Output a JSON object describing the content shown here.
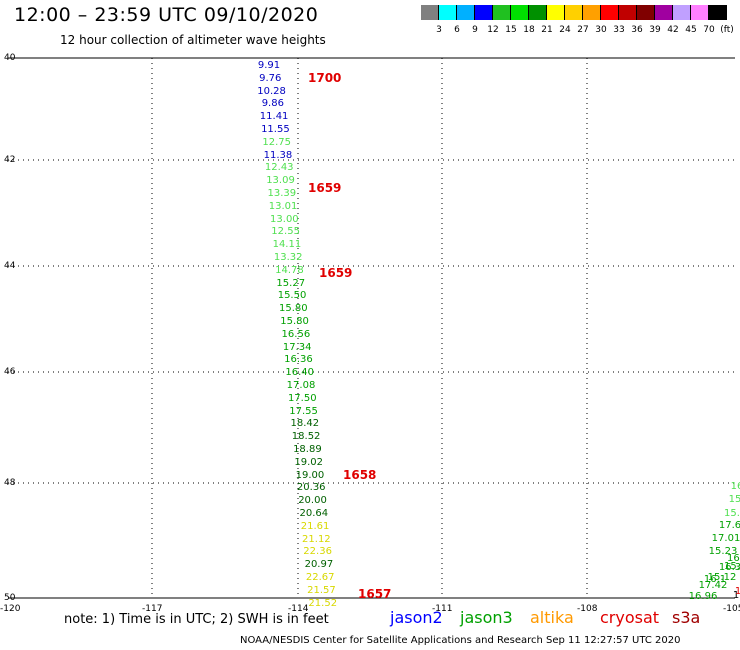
{
  "header": {
    "title": "12:00 – 23:59 UTC 09/10/2020",
    "subtitle": "12 hour collection of altimeter wave heights"
  },
  "legend": {
    "colors": [
      "#808080",
      "#00ffff",
      "#00b0ff",
      "#0000ff",
      "#20c020",
      "#00e000",
      "#009000",
      "#ffff00",
      "#ffd000",
      "#ffa000",
      "#ff0000",
      "#c00000",
      "#800000",
      "#a000a0",
      "#c0a0ff",
      "#ff80ff",
      "#000000"
    ],
    "labels": [
      "3",
      "6",
      "9",
      "12",
      "15",
      "18",
      "21",
      "24",
      "27",
      "30",
      "33",
      "36",
      "39",
      "42",
      "45",
      "70",
      "(ft)"
    ]
  },
  "axes": {
    "x_ticks": [
      "-120",
      "-117",
      "-114",
      "-111",
      "-108",
      "-105"
    ],
    "y_ticks": [
      "40",
      "42",
      "44",
      "46",
      "48",
      "50"
    ]
  },
  "observations_main": [
    {
      "v": "9.91",
      "c": "#0000c0"
    },
    {
      "v": "9.76",
      "c": "#0000c0"
    },
    {
      "v": "10.28",
      "c": "#0000c0"
    },
    {
      "v": "9.86",
      "c": "#0000c0"
    },
    {
      "v": "11.41",
      "c": "#0000c0"
    },
    {
      "v": "11.55",
      "c": "#0000c0"
    },
    {
      "v": "12.75",
      "c": "#50e050"
    },
    {
      "v": "11.38",
      "c": "#0000c0"
    },
    {
      "v": "12.43",
      "c": "#50e050"
    },
    {
      "v": "13.09",
      "c": "#50e050"
    },
    {
      "v": "13.39",
      "c": "#50e050"
    },
    {
      "v": "13.01",
      "c": "#50e050"
    },
    {
      "v": "13.00",
      "c": "#50e050"
    },
    {
      "v": "12.55",
      "c": "#50e050"
    },
    {
      "v": "14.11",
      "c": "#50e050"
    },
    {
      "v": "13.32",
      "c": "#50e050"
    },
    {
      "v": "14.78",
      "c": "#50e050"
    },
    {
      "v": "15.27",
      "c": "#00a000"
    },
    {
      "v": "15.50",
      "c": "#00a000"
    },
    {
      "v": "15.80",
      "c": "#00a000"
    },
    {
      "v": "15.80",
      "c": "#00a000"
    },
    {
      "v": "16.56",
      "c": "#00a000"
    },
    {
      "v": "17.34",
      "c": "#00a000"
    },
    {
      "v": "16.36",
      "c": "#00a000"
    },
    {
      "v": "16.40",
      "c": "#00a000"
    },
    {
      "v": "17.08",
      "c": "#00a000"
    },
    {
      "v": "17.50",
      "c": "#00a000"
    },
    {
      "v": "17.55",
      "c": "#00a000"
    },
    {
      "v": "18.42",
      "c": "#006000"
    },
    {
      "v": "18.52",
      "c": "#006000"
    },
    {
      "v": "18.89",
      "c": "#006000"
    },
    {
      "v": "19.02",
      "c": "#006000"
    },
    {
      "v": "19.00",
      "c": "#006000"
    },
    {
      "v": "20.36",
      "c": "#006000"
    },
    {
      "v": "20.00",
      "c": "#006000"
    },
    {
      "v": "20.64",
      "c": "#006000"
    },
    {
      "v": "21.61",
      "c": "#d8d800"
    },
    {
      "v": "21.12",
      "c": "#d8d800"
    },
    {
      "v": "22.36",
      "c": "#d8d800"
    },
    {
      "v": "20.97",
      "c": "#006000"
    },
    {
      "v": "22.67",
      "c": "#d8d800"
    },
    {
      "v": "21.57",
      "c": "#d8d800"
    },
    {
      "v": "21.52",
      "c": "#d8d800"
    }
  ],
  "observations_right": [
    {
      "v": "16",
      "c": "#50e050"
    },
    {
      "v": "15",
      "c": "#50e050"
    },
    {
      "v": "15.",
      "c": "#50e050"
    },
    {
      "v": "17.6",
      "c": "#00a000"
    },
    {
      "v": "17.01",
      "c": "#00a000"
    },
    {
      "v": "15.23",
      "c": "#00a000"
    },
    {
      "v": "16.",
      "c": "#00a000"
    },
    {
      "v": "15.",
      "c": "#00a000"
    },
    {
      "v": "16.3",
      "c": "#00a000"
    },
    {
      "v": "15.12",
      "c": "#00a000"
    },
    {
      "v": "16.1",
      "c": "#00a000"
    },
    {
      "v": "17.42",
      "c": "#00a000"
    },
    {
      "v": "16.96",
      "c": "#00a000"
    },
    {
      "v": "1",
      "c": "#000000"
    },
    {
      "v": "1",
      "c": "#e00000"
    }
  ],
  "pass_times": [
    "1700",
    "1659",
    "1659",
    "1658",
    "1657"
  ],
  "note": "note:  1) Time is in UTC; 2) SWH is in feet",
  "satellites": [
    {
      "name": "jason2",
      "color": "#0000ff"
    },
    {
      "name": "jason3",
      "color": "#00a000"
    },
    {
      "name": "altika",
      "color": "#ff9900"
    },
    {
      "name": "cryosat",
      "color": "#e00000"
    },
    {
      "name": "s3a",
      "color": "#a00000"
    }
  ],
  "footer": "NOAA/NESDIS Center for Satellite Applications and Research    Sep 11 12:27:57 UTC 2020"
}
